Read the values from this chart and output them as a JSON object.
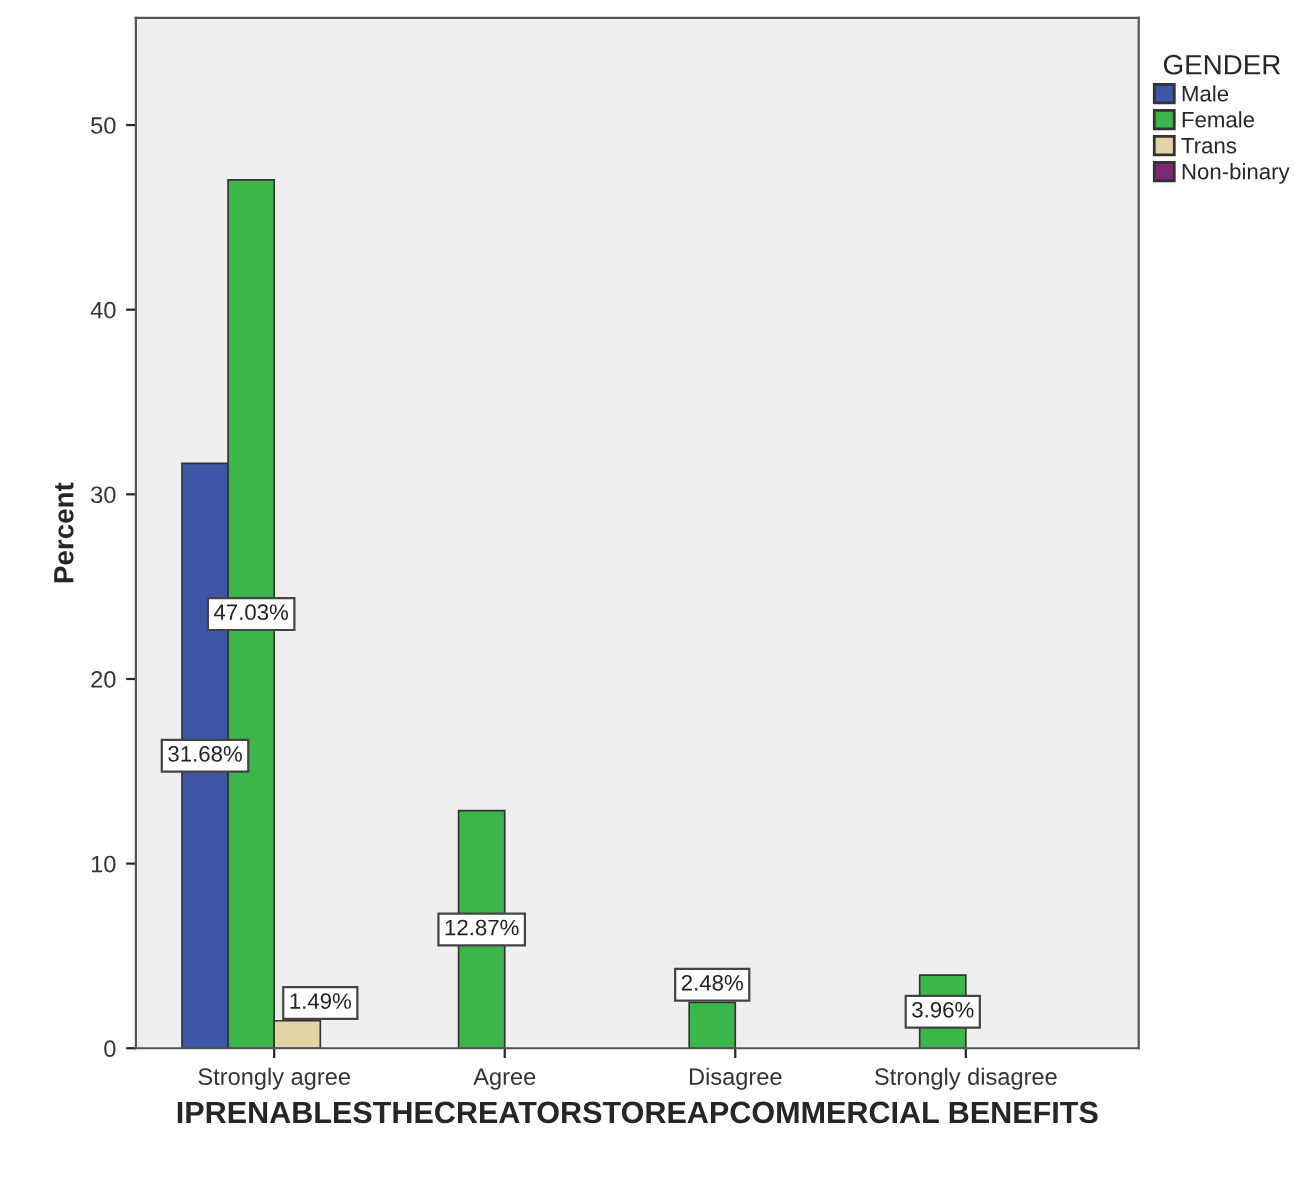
{
  "chart_data": {
    "type": "bar",
    "xlabel": "IPRENABLESTHECREATORSTOREAPCOMMERCIAL BENEFITS",
    "ylabel": "Percent",
    "legend_title": "GENDER",
    "categories": [
      "Strongly agree",
      "Agree",
      "Disagree",
      "Strongly disagree"
    ],
    "series": [
      {
        "name": "Male",
        "color": "#3d56a6",
        "values": [
          31.68,
          null,
          null,
          null
        ],
        "value_labels": [
          "31.68%",
          null,
          null,
          null
        ]
      },
      {
        "name": "Female",
        "color": "#3cb54a",
        "values": [
          47.03,
          12.87,
          2.48,
          3.96
        ],
        "value_labels": [
          "47.03%",
          "12.87%",
          "2.48%",
          "3.96%"
        ]
      },
      {
        "name": "Trans",
        "color": "#e3d3a6",
        "values": [
          1.49,
          null,
          null,
          null
        ],
        "value_labels": [
          "1.49%",
          null,
          null,
          null
        ]
      },
      {
        "name": "Non-binary",
        "color": "#7b2a70",
        "values": [
          null,
          null,
          null,
          null
        ]
      }
    ],
    "ylim": [
      0,
      55.8
    ],
    "yticks": [
      0,
      10,
      20,
      30,
      40,
      50
    ],
    "grid": false,
    "legend": "top right"
  }
}
